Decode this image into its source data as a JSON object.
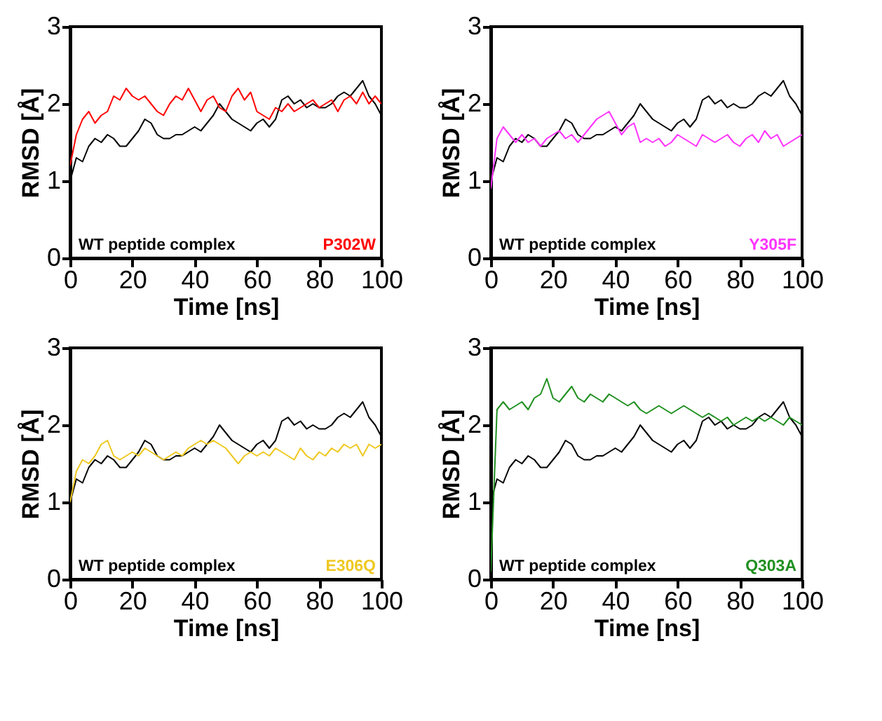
{
  "chart_data": [
    {
      "type": "line",
      "xlabel": "Time [ns]",
      "ylabel": "RMSD [Å]",
      "xlim": [
        0,
        100
      ],
      "xticks": [
        0,
        20,
        40,
        60,
        80,
        100
      ],
      "ylim": [
        0,
        3
      ],
      "yticks": [
        0,
        1,
        2,
        3
      ],
      "grid": false,
      "x": [
        0,
        2,
        4,
        6,
        8,
        10,
        12,
        14,
        16,
        18,
        20,
        22,
        24,
        26,
        28,
        30,
        32,
        34,
        36,
        38,
        40,
        42,
        44,
        46,
        48,
        50,
        52,
        54,
        56,
        58,
        60,
        62,
        64,
        66,
        68,
        70,
        72,
        74,
        76,
        78,
        80,
        82,
        84,
        86,
        88,
        90,
        92,
        94,
        96,
        98,
        100
      ],
      "series": [
        {
          "name": "WT peptide complex",
          "color": "#000000",
          "values": [
            1.0,
            1.3,
            1.25,
            1.45,
            1.55,
            1.5,
            1.6,
            1.55,
            1.45,
            1.45,
            1.55,
            1.65,
            1.8,
            1.75,
            1.6,
            1.55,
            1.55,
            1.6,
            1.6,
            1.65,
            1.7,
            1.65,
            1.75,
            1.85,
            2.0,
            1.9,
            1.8,
            1.75,
            1.7,
            1.65,
            1.75,
            1.8,
            1.7,
            1.8,
            2.05,
            2.1,
            2.0,
            2.05,
            1.95,
            2.0,
            1.95,
            1.95,
            2.0,
            2.1,
            2.15,
            2.1,
            2.2,
            2.3,
            2.1,
            2.0,
            1.85
          ]
        },
        {
          "name": "P302W",
          "color": "#ff0000",
          "values": [
            1.2,
            1.6,
            1.8,
            1.9,
            1.75,
            1.85,
            1.9,
            2.1,
            2.05,
            2.2,
            2.1,
            2.05,
            2.1,
            2.0,
            1.9,
            1.85,
            2.0,
            2.1,
            2.05,
            2.2,
            2.05,
            1.9,
            2.05,
            2.1,
            1.95,
            1.9,
            2.1,
            2.2,
            2.05,
            2.15,
            1.9,
            1.85,
            1.8,
            1.95,
            1.9,
            2.0,
            1.9,
            1.95,
            2.0,
            2.05,
            1.95,
            2.0,
            2.05,
            1.9,
            2.05,
            2.1,
            2.0,
            2.15,
            2.0,
            2.1,
            2.0
          ]
        }
      ]
    },
    {
      "type": "line",
      "xlabel": "Time [ns]",
      "ylabel": "RMSD [Å]",
      "xlim": [
        0,
        100
      ],
      "xticks": [
        0,
        20,
        40,
        60,
        80,
        100
      ],
      "ylim": [
        0,
        3
      ],
      "yticks": [
        0,
        1,
        2,
        3
      ],
      "grid": false,
      "x": [
        0,
        2,
        4,
        6,
        8,
        10,
        12,
        14,
        16,
        18,
        20,
        22,
        24,
        26,
        28,
        30,
        32,
        34,
        36,
        38,
        40,
        42,
        44,
        46,
        48,
        50,
        52,
        54,
        56,
        58,
        60,
        62,
        64,
        66,
        68,
        70,
        72,
        74,
        76,
        78,
        80,
        82,
        84,
        86,
        88,
        90,
        92,
        94,
        96,
        98,
        100
      ],
      "series": [
        {
          "name": "WT peptide complex",
          "color": "#000000",
          "values": [
            1.0,
            1.3,
            1.25,
            1.45,
            1.55,
            1.5,
            1.6,
            1.55,
            1.45,
            1.45,
            1.55,
            1.65,
            1.8,
            1.75,
            1.6,
            1.55,
            1.55,
            1.6,
            1.6,
            1.65,
            1.7,
            1.65,
            1.75,
            1.85,
            2.0,
            1.9,
            1.8,
            1.75,
            1.7,
            1.65,
            1.75,
            1.8,
            1.7,
            1.8,
            2.05,
            2.1,
            2.0,
            2.05,
            1.95,
            2.0,
            1.95,
            1.95,
            2.0,
            2.1,
            2.15,
            2.1,
            2.2,
            2.3,
            2.1,
            2.0,
            1.85
          ]
        },
        {
          "name": "Y305F",
          "color": "#ff33ff",
          "values": [
            0.9,
            1.55,
            1.7,
            1.6,
            1.5,
            1.6,
            1.5,
            1.55,
            1.45,
            1.55,
            1.6,
            1.65,
            1.55,
            1.6,
            1.5,
            1.6,
            1.7,
            1.8,
            1.85,
            1.9,
            1.75,
            1.6,
            1.7,
            1.75,
            1.5,
            1.55,
            1.5,
            1.55,
            1.45,
            1.5,
            1.6,
            1.55,
            1.5,
            1.45,
            1.6,
            1.55,
            1.5,
            1.55,
            1.6,
            1.5,
            1.45,
            1.55,
            1.6,
            1.5,
            1.65,
            1.55,
            1.6,
            1.45,
            1.5,
            1.55,
            1.6
          ]
        }
      ]
    },
    {
      "type": "line",
      "xlabel": "Time [ns]",
      "ylabel": "RMSD [Å]",
      "xlim": [
        0,
        100
      ],
      "xticks": [
        0,
        20,
        40,
        60,
        80,
        100
      ],
      "ylim": [
        0,
        3
      ],
      "yticks": [
        0,
        1,
        2,
        3
      ],
      "grid": false,
      "x": [
        0,
        2,
        4,
        6,
        8,
        10,
        12,
        14,
        16,
        18,
        20,
        22,
        24,
        26,
        28,
        30,
        32,
        34,
        36,
        38,
        40,
        42,
        44,
        46,
        48,
        50,
        52,
        54,
        56,
        58,
        60,
        62,
        64,
        66,
        68,
        70,
        72,
        74,
        76,
        78,
        80,
        82,
        84,
        86,
        88,
        90,
        92,
        94,
        96,
        98,
        100
      ],
      "series": [
        {
          "name": "WT peptide complex",
          "color": "#000000",
          "values": [
            1.0,
            1.3,
            1.25,
            1.45,
            1.55,
            1.5,
            1.6,
            1.55,
            1.45,
            1.45,
            1.55,
            1.65,
            1.8,
            1.75,
            1.6,
            1.55,
            1.55,
            1.6,
            1.6,
            1.65,
            1.7,
            1.65,
            1.75,
            1.85,
            2.0,
            1.9,
            1.8,
            1.75,
            1.7,
            1.65,
            1.75,
            1.8,
            1.7,
            1.8,
            2.05,
            2.1,
            2.0,
            2.05,
            1.95,
            2.0,
            1.95,
            1.95,
            2.0,
            2.1,
            2.15,
            2.1,
            2.2,
            2.3,
            2.1,
            2.0,
            1.85
          ]
        },
        {
          "name": "E306Q",
          "color": "#eec820",
          "values": [
            1.0,
            1.4,
            1.55,
            1.5,
            1.6,
            1.75,
            1.8,
            1.6,
            1.55,
            1.6,
            1.65,
            1.6,
            1.7,
            1.65,
            1.6,
            1.55,
            1.6,
            1.65,
            1.6,
            1.7,
            1.75,
            1.8,
            1.75,
            1.8,
            1.75,
            1.7,
            1.6,
            1.5,
            1.6,
            1.65,
            1.6,
            1.65,
            1.6,
            1.7,
            1.65,
            1.6,
            1.55,
            1.7,
            1.6,
            1.55,
            1.65,
            1.6,
            1.7,
            1.65,
            1.75,
            1.7,
            1.75,
            1.6,
            1.75,
            1.7,
            1.75
          ]
        }
      ]
    },
    {
      "type": "line",
      "xlabel": "Time [ns]",
      "ylabel": "RMSD [Å]",
      "xlim": [
        0,
        100
      ],
      "xticks": [
        0,
        20,
        40,
        60,
        80,
        100
      ],
      "ylim": [
        0,
        3
      ],
      "yticks": [
        0,
        1,
        2,
        3
      ],
      "grid": false,
      "x": [
        0,
        2,
        4,
        6,
        8,
        10,
        12,
        14,
        16,
        18,
        20,
        22,
        24,
        26,
        28,
        30,
        32,
        34,
        36,
        38,
        40,
        42,
        44,
        46,
        48,
        50,
        52,
        54,
        56,
        58,
        60,
        62,
        64,
        66,
        68,
        70,
        72,
        74,
        76,
        78,
        80,
        82,
        84,
        86,
        88,
        90,
        92,
        94,
        96,
        98,
        100
      ],
      "series": [
        {
          "name": "WT peptide complex",
          "color": "#000000",
          "values": [
            1.0,
            1.3,
            1.25,
            1.45,
            1.55,
            1.5,
            1.6,
            1.55,
            1.45,
            1.45,
            1.55,
            1.65,
            1.8,
            1.75,
            1.6,
            1.55,
            1.55,
            1.6,
            1.6,
            1.65,
            1.7,
            1.65,
            1.75,
            1.85,
            2.0,
            1.9,
            1.8,
            1.75,
            1.7,
            1.65,
            1.75,
            1.8,
            1.7,
            1.8,
            2.05,
            2.1,
            2.0,
            2.05,
            1.95,
            2.0,
            1.95,
            1.95,
            2.0,
            2.1,
            2.15,
            2.1,
            2.2,
            2.3,
            2.1,
            2.0,
            1.85
          ]
        },
        {
          "name": "Q303A",
          "color": "#1f8f1f",
          "values": [
            0.1,
            2.2,
            2.3,
            2.2,
            2.25,
            2.3,
            2.2,
            2.35,
            2.4,
            2.6,
            2.35,
            2.3,
            2.4,
            2.5,
            2.35,
            2.3,
            2.4,
            2.35,
            2.3,
            2.4,
            2.35,
            2.3,
            2.25,
            2.3,
            2.2,
            2.15,
            2.2,
            2.25,
            2.2,
            2.15,
            2.2,
            2.25,
            2.2,
            2.15,
            2.1,
            2.15,
            2.1,
            2.05,
            2.1,
            2.0,
            2.05,
            2.1,
            2.05,
            2.1,
            2.05,
            2.1,
            2.05,
            2.0,
            2.1,
            2.05,
            2.0
          ]
        }
      ]
    }
  ]
}
